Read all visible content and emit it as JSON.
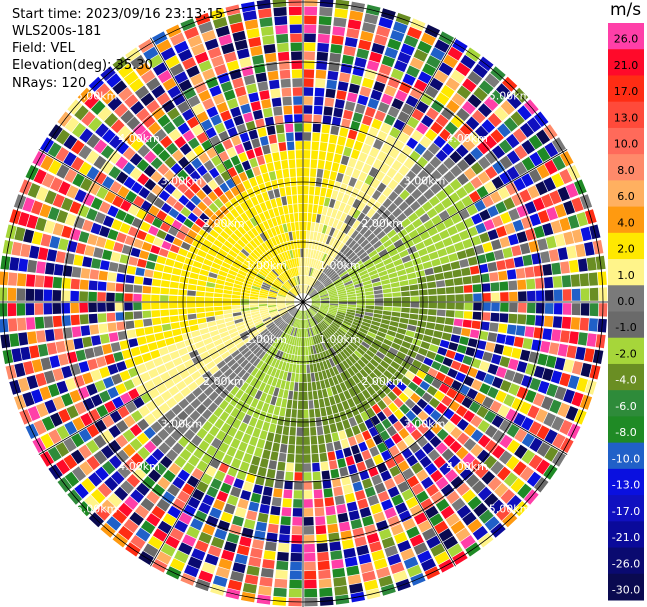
{
  "header": {
    "start_time": "Start time: 2023/09/16 23:13:15",
    "instrument": "WLS200s-181",
    "field": "Field: VEL",
    "elevation": "Elevation(deg): 35.30",
    "nrays": "NRays: 120"
  },
  "colorbar": {
    "unit": "m/s",
    "ticks": [
      "26.0",
      "21.0",
      "17.0",
      "13.0",
      "10.0",
      "8.0",
      "6.0",
      "4.0",
      "2.0",
      "1.0",
      "0.0",
      "-1.0",
      "-2.0",
      "-4.0",
      "-6.0",
      "-8.0",
      "-10.0",
      "-13.0",
      "-17.0",
      "-21.0",
      "-26.0",
      "-30.0"
    ],
    "colors": [
      "#ff3fa8",
      "#ff0a2a",
      "#ff2d14",
      "#ff4a3a",
      "#ff6a5a",
      "#ff8a6a",
      "#ffb060",
      "#ff9a10",
      "#ffe800",
      "#fff48a",
      "#7a7a7a",
      "#6a6a6a",
      "#a6d63a",
      "#6a8e23",
      "#2e8b3a",
      "#1f8a25",
      "#2060c8",
      "#0a10e0",
      "#1010c0",
      "#0a0a9a",
      "#0a0a70",
      "#0a0a50"
    ]
  },
  "range_labels": {
    "r1": "1.00km",
    "r2": "2.00km",
    "r3": "3.00km",
    "r4": "4.00km",
    "r5": "5.00km"
  }
}
